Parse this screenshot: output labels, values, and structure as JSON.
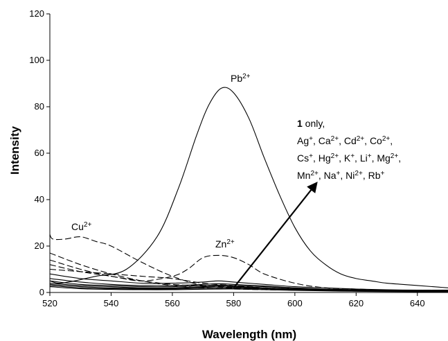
{
  "chart_data": {
    "type": "line",
    "title": "",
    "xlabel": "Wavelength (nm)",
    "ylabel": "Intensity",
    "xlim": [
      520,
      650
    ],
    "ylim": [
      0,
      120
    ],
    "xticks": [
      520,
      540,
      560,
      580,
      600,
      620,
      640
    ],
    "yticks": [
      0,
      20,
      40,
      60,
      80,
      100,
      120
    ],
    "grid": false,
    "legend": "none",
    "series": [
      {
        "style": "solid",
        "x": [
          520,
          523,
          528,
          535,
          545,
          555,
          562,
          568,
          572,
          576,
          580,
          585,
          590,
          595,
          600,
          605,
          610,
          615,
          620,
          625,
          630,
          635,
          640,
          645,
          650
        ],
        "y": [
          5,
          4,
          5,
          7,
          10,
          24,
          45,
          68,
          81,
          88,
          86,
          75,
          58,
          42,
          28,
          18,
          12,
          8,
          6,
          5,
          4,
          3.5,
          3,
          2.5,
          2
        ]
      },
      {
        "style": "dashed",
        "x": [
          520,
          521,
          525,
          530,
          535,
          540,
          550,
          560,
          570,
          580,
          590,
          600,
          610,
          620,
          630
        ],
        "y": [
          25,
          23,
          23,
          24,
          22,
          20,
          13,
          7,
          3,
          2,
          1.5,
          1,
          1,
          0.8,
          0.5
        ]
      },
      {
        "style": "dashed",
        "x": [
          520,
          530,
          540,
          550,
          560,
          565,
          570,
          575,
          580,
          585,
          590,
          600,
          610,
          620,
          630,
          640,
          650
        ],
        "y": [
          12,
          9,
          7,
          5,
          7,
          10,
          15,
          16,
          15,
          12,
          8,
          4,
          2,
          1.5,
          1,
          1,
          0.8
        ]
      },
      {
        "style": "dashed",
        "x": [
          520,
          530,
          540,
          550,
          560,
          570,
          580,
          590,
          600,
          610,
          620,
          630,
          640,
          650
        ],
        "y": [
          17,
          12,
          8,
          5,
          3,
          2,
          1.5,
          1.2,
          1,
          1,
          1,
          1,
          1,
          1
        ]
      },
      {
        "style": "dashed",
        "x": [
          520,
          530,
          540,
          550,
          560,
          570,
          580,
          590,
          600,
          610,
          620,
          630,
          640,
          650
        ],
        "y": [
          14,
          10,
          7,
          5,
          3.5,
          2.8,
          2.5,
          2,
          1.5,
          1.2,
          1,
          1,
          1,
          1
        ]
      },
      {
        "style": "dashed",
        "x": [
          520,
          530,
          540,
          550,
          560,
          570,
          580,
          590,
          600,
          610,
          620,
          630,
          640,
          650
        ],
        "y": [
          10,
          9,
          8,
          7,
          6,
          4,
          3,
          2,
          1.5,
          1.2,
          1,
          1,
          0.8,
          0.8
        ]
      },
      {
        "style": "solid",
        "x": [
          520,
          530,
          540,
          550,
          560,
          570,
          575,
          580,
          590,
          600,
          610,
          620,
          630,
          640,
          650
        ],
        "y": [
          8,
          6,
          5,
          4,
          4,
          4.5,
          5,
          4.5,
          3.5,
          2.5,
          2,
          1.5,
          1.2,
          1,
          1
        ]
      },
      {
        "style": "solid",
        "x": [
          520,
          530,
          540,
          550,
          560,
          570,
          575,
          580,
          590,
          600,
          610,
          620,
          630,
          640,
          650
        ],
        "y": [
          6,
          4.5,
          3.5,
          3,
          3,
          3.5,
          3.8,
          3.5,
          2.8,
          2,
          1.5,
          1.2,
          1,
          0.8,
          0.8
        ]
      },
      {
        "style": "solid",
        "x": [
          520,
          530,
          540,
          550,
          560,
          570,
          575,
          580,
          590,
          600,
          610,
          620,
          630,
          640,
          650
        ],
        "y": [
          5,
          3.5,
          3,
          2.5,
          2.5,
          3,
          3.2,
          3,
          2.5,
          1.8,
          1.3,
          1,
          0.8,
          0.7,
          0.6
        ]
      },
      {
        "style": "solid",
        "x": [
          520,
          530,
          540,
          550,
          560,
          570,
          575,
          580,
          590,
          600,
          610,
          620,
          630,
          640,
          650
        ],
        "y": [
          4,
          3,
          2.5,
          2,
          2,
          2.5,
          2.8,
          2.6,
          2,
          1.5,
          1.1,
          0.9,
          0.7,
          0.6,
          0.5
        ]
      },
      {
        "style": "solid",
        "x": [
          520,
          530,
          540,
          550,
          560,
          570,
          575,
          580,
          590,
          600,
          610,
          620,
          630,
          640,
          650
        ],
        "y": [
          3.5,
          2.5,
          2,
          1.8,
          1.8,
          2.2,
          2.4,
          2.2,
          1.8,
          1.3,
          1,
          0.8,
          0.6,
          0.5,
          0.4
        ]
      },
      {
        "style": "solid",
        "x": [
          520,
          530,
          540,
          550,
          560,
          570,
          580,
          590,
          600,
          610,
          620,
          630,
          640,
          650
        ],
        "y": [
          3,
          2,
          1.6,
          1.5,
          1.5,
          1.8,
          1.8,
          1.5,
          1.1,
          0.8,
          0.6,
          0.5,
          0.4,
          0.3
        ]
      },
      {
        "style": "solid",
        "x": [
          520,
          530,
          540,
          550,
          560,
          570,
          580,
          590,
          600,
          610,
          620,
          630,
          640,
          650
        ],
        "y": [
          2.5,
          1.6,
          1.3,
          1.2,
          1.2,
          1.4,
          1.5,
          1.2,
          0.9,
          0.7,
          0.5,
          0.4,
          0.3,
          0.3
        ]
      }
    ],
    "annotations": {
      "pb": {
        "base": "Pb",
        "sup": "2+"
      },
      "cu": {
        "base": "Cu",
        "sup": "2+"
      },
      "zn": {
        "base": "Zn",
        "sup": "2+"
      },
      "only_bold": "1",
      "only_rest": " only,",
      "ions_line1": [
        {
          "base": "Ag",
          "sup": "+",
          "sep": ", "
        },
        {
          "base": "Ca",
          "sup": "2+",
          "sep": ", "
        },
        {
          "base": "Cd",
          "sup": "2+",
          "sep": ", "
        },
        {
          "base": "Co",
          "sup": "2+",
          "sep": ","
        }
      ],
      "ions_line2": [
        {
          "base": "Cs",
          "sup": "+",
          "sep": ", "
        },
        {
          "base": "Hg",
          "sup": "2+",
          "sep": ", "
        },
        {
          "base": "K",
          "sup": "+",
          "sep": ", "
        },
        {
          "base": "Li",
          "sup": "+",
          "sep": ", "
        },
        {
          "base": "Mg",
          "sup": "2+",
          "sep": ","
        }
      ],
      "ions_line3": [
        {
          "base": "Mn",
          "sup": "2+",
          "sep": ", "
        },
        {
          "base": "Na",
          "sup": "+",
          "sep": ", "
        },
        {
          "base": "Ni",
          "sup": "2+",
          "sep": ", "
        },
        {
          "base": "Rb",
          "sup": "+",
          "sep": ""
        }
      ],
      "arrow": {
        "from": [
          580,
          2
        ],
        "to": [
          607,
          47
        ]
      }
    }
  }
}
